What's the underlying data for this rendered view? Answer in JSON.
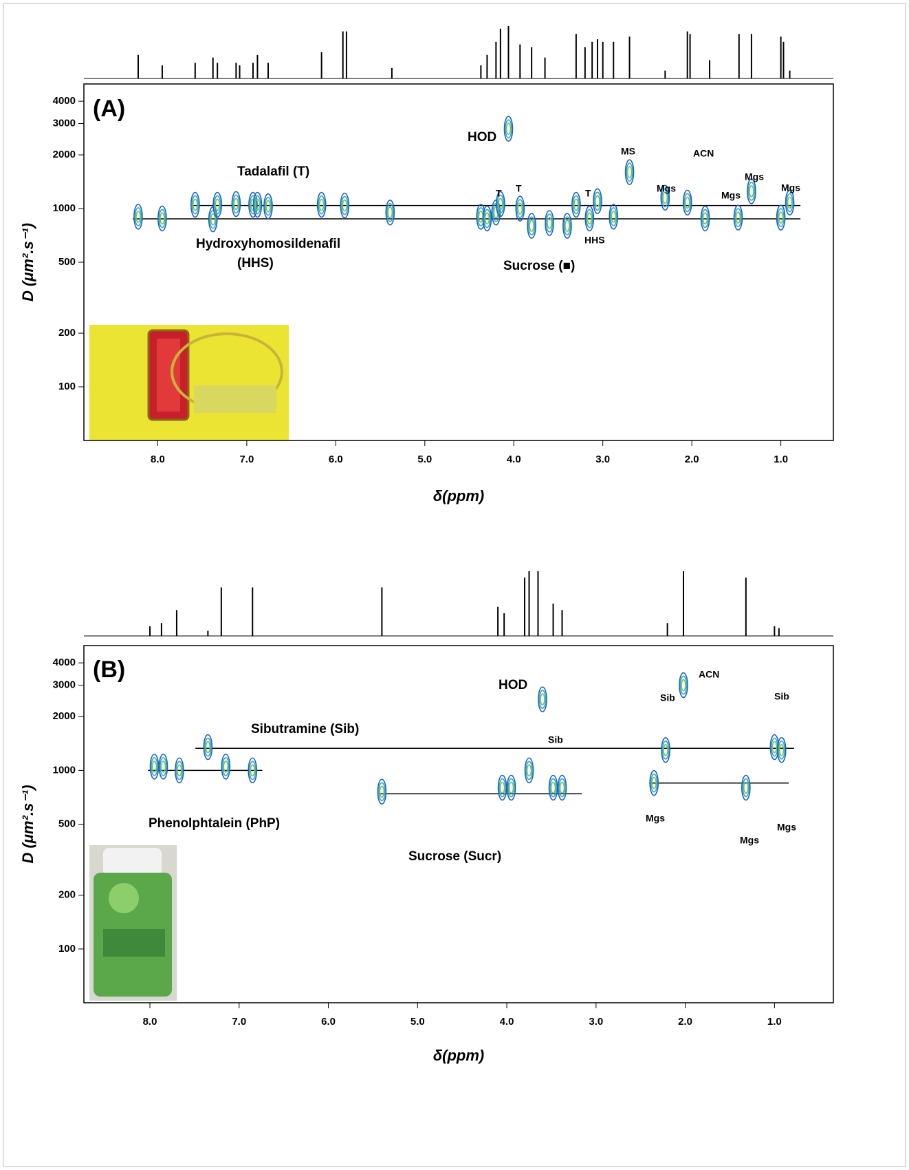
{
  "chart_data": [
    {
      "type": "dosy",
      "panel": "(A)",
      "xlabel": "δ(ppm)",
      "ylabel": "D (μm².s⁻¹)",
      "xlim": [
        8.83,
        0.41
      ],
      "ylim": [
        50,
        5000
      ],
      "log_y": true,
      "xticks": [
        {
          "value": 8,
          "label": "8.0"
        },
        {
          "value": 7,
          "label": "7.0"
        },
        {
          "value": 6,
          "label": "6.0"
        },
        {
          "value": 5,
          "label": "5.0"
        },
        {
          "value": 4,
          "label": "4.0"
        },
        {
          "value": 3,
          "label": "3.0"
        },
        {
          "value": 2,
          "label": "2.0"
        },
        {
          "value": 1,
          "label": "1.0"
        }
      ],
      "yticks": [
        100,
        200,
        500,
        1000,
        2000,
        3000,
        4000
      ],
      "peaks": {
        "x": [
          8.22,
          7.95,
          7.58,
          7.38,
          7.33,
          7.12,
          6.93,
          6.88,
          6.76,
          6.16,
          5.9,
          5.39,
          4.37,
          4.3,
          4.2,
          4.15,
          4.06,
          3.93,
          3.8,
          3.6,
          3.4,
          3.3,
          3.15,
          3.06,
          2.88,
          2.7,
          2.3,
          2.05,
          1.85,
          1.48,
          1.33,
          1.0,
          0.9
        ],
        "D": [
          900,
          880,
          1050,
          870,
          1050,
          1060,
          1050,
          1050,
          1030,
          1050,
          1040,
          950,
          900,
          880,
          950,
          1060,
          2800,
          1000,
          800,
          830,
          800,
          1050,
          880,
          1100,
          900,
          1600,
          1150,
          1080,
          880,
          890,
          1250,
          890,
          1080
        ]
      },
      "lines": [
        {
          "D": 1040,
          "x": [
            7.6,
            0.78
          ]
        },
        {
          "D": 875,
          "x": [
            8.28,
            0.78
          ]
        }
      ],
      "spectrum": {
        "x": [
          8.22,
          7.95,
          7.58,
          7.38,
          7.33,
          7.12,
          7.08,
          6.93,
          6.88,
          6.76,
          6.16,
          5.92,
          5.88,
          5.37,
          4.37,
          4.3,
          4.2,
          4.15,
          4.06,
          3.93,
          3.8,
          3.65,
          3.3,
          3.2,
          3.12,
          3.06,
          3.0,
          2.88,
          2.7,
          2.3,
          2.05,
          2.02,
          1.8,
          1.47,
          1.33,
          1.0,
          0.97,
          0.9
        ],
        "intensity": [
          45,
          25,
          30,
          40,
          30,
          30,
          25,
          30,
          45,
          30,
          50,
          90,
          90,
          20,
          25,
          45,
          70,
          95,
          100,
          65,
          60,
          40,
          85,
          60,
          70,
          75,
          70,
          70,
          80,
          15,
          90,
          85,
          35,
          85,
          85,
          80,
          70,
          15
        ]
      },
      "annotations": [
        "(A)",
        "HOD",
        "Tadalafil (T)",
        "Hydroxyhomosildenafil",
        "(HHS)",
        "Sucrose (■)",
        "T",
        "T",
        "T",
        "HHS",
        "MS",
        "ACN",
        "Mgs",
        "Mgs",
        "Mgs",
        "Mgs"
      ]
    },
    {
      "type": "dosy",
      "panel": "(B)",
      "xlabel": "δ(ppm)",
      "ylabel": "D (μm².s⁻¹)",
      "xlim": [
        8.74,
        0.34
      ],
      "ylim": [
        50,
        5000
      ],
      "log_y": true,
      "xticks": [
        {
          "value": 8,
          "label": "8.0"
        },
        {
          "value": 7,
          "label": "7.0"
        },
        {
          "value": 6,
          "label": "6.0"
        },
        {
          "value": 5,
          "label": "5.0"
        },
        {
          "value": 4,
          "label": "4.0"
        },
        {
          "value": 3,
          "label": "3.0"
        },
        {
          "value": 2,
          "label": "2.0"
        },
        {
          "value": 1,
          "label": "1.0"
        }
      ],
      "yticks": [
        100,
        200,
        500,
        1000,
        2000,
        3000,
        4000
      ],
      "peaks": {
        "x": [
          7.95,
          7.85,
          7.67,
          7.35,
          7.15,
          6.85,
          5.4,
          4.05,
          3.95,
          3.75,
          3.6,
          3.48,
          3.38,
          2.35,
          2.22,
          2.02,
          1.32,
          1.0,
          0.92
        ],
        "D": [
          1050,
          1050,
          1000,
          1350,
          1050,
          1000,
          760,
          800,
          800,
          1000,
          2500,
          800,
          800,
          850,
          1300,
          3000,
          800,
          1350,
          1300
        ]
      },
      "lines": [
        {
          "D": 1330,
          "x": [
            7.49,
            0.78
          ]
        },
        {
          "D": 1000,
          "x": [
            8.02,
            6.74
          ]
        },
        {
          "D": 740,
          "x": [
            5.45,
            3.16
          ]
        },
        {
          "D": 850,
          "x": [
            2.39,
            0.84
          ]
        }
      ],
      "spectrum": {
        "x": [
          8.0,
          7.87,
          7.7,
          7.35,
          7.2,
          6.85,
          5.4,
          4.1,
          4.03,
          3.8,
          3.75,
          3.65,
          3.48,
          3.38,
          2.2,
          2.02,
          1.32,
          1.0,
          0.95
        ],
        "intensity": [
          15,
          20,
          40,
          8,
          75,
          75,
          75,
          45,
          35,
          90,
          100,
          100,
          50,
          40,
          20,
          100,
          90,
          15,
          12
        ]
      },
      "annotations": [
        "(B)",
        "HOD",
        "ACN",
        "Sibutramine (Sib)",
        "Sib",
        "Sib",
        "Sib",
        "Phenolphtalein (PhP)",
        "Sucrose (Sucr)",
        "Mgs",
        "Mgs",
        "Mgs"
      ]
    }
  ]
}
